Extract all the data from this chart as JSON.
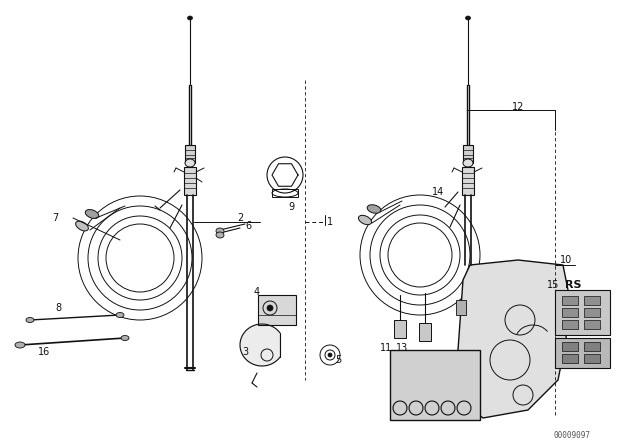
{
  "bg_color": "#ffffff",
  "line_color": "#111111",
  "watermark": "00009097",
  "fig_width": 6.4,
  "fig_height": 4.48,
  "dpi": 100
}
